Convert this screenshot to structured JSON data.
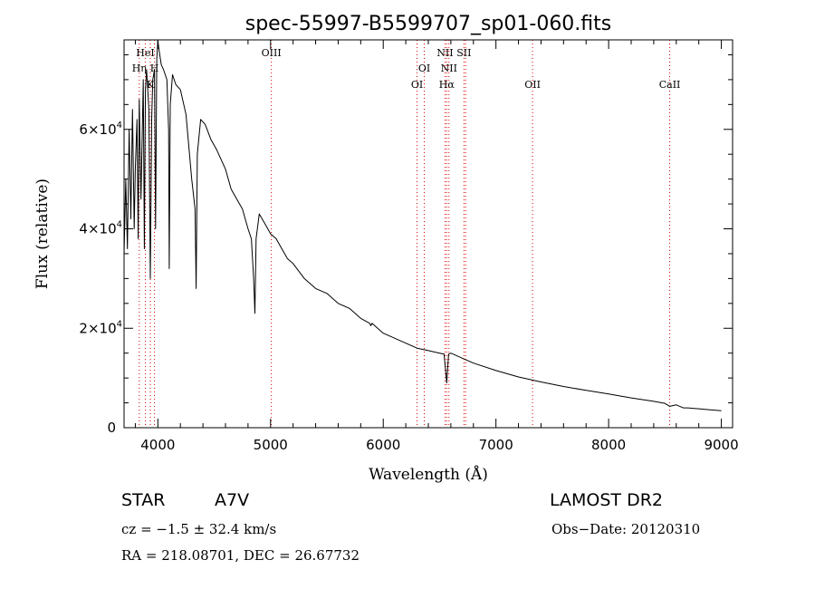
{
  "chart_data": {
    "type": "line",
    "title": "spec-55997-B5599707_sp01-060.fits",
    "xlabel": "Wavelength (Å)",
    "ylabel": "Flux (relative)",
    "xlim": [
      3700,
      9100
    ],
    "ylim": [
      0,
      78000
    ],
    "xticks": [
      4000,
      5000,
      6000,
      7000,
      8000,
      9000
    ],
    "yticks": [
      {
        "value": 0,
        "base": "0",
        "exp": ""
      },
      {
        "value": 20000,
        "base": "2×10",
        "exp": "4"
      },
      {
        "value": 40000,
        "base": "4×10",
        "exp": "4"
      },
      {
        "value": 60000,
        "base": "6×10",
        "exp": "4"
      }
    ],
    "grid": false,
    "series": [
      {
        "x": [
          3700,
          3715,
          3730,
          3745,
          3760,
          3775,
          3790,
          3800,
          3815,
          3825,
          3835,
          3850,
          3870,
          3880,
          3890,
          3900,
          3920,
          3933,
          3945,
          3955,
          3970,
          3980,
          3990,
          4000,
          4010,
          4030,
          4050,
          4080,
          4095,
          4101,
          4110,
          4130,
          4160,
          4200,
          4250,
          4300,
          4330,
          4340,
          4350,
          4380,
          4420,
          4470,
          4520,
          4560,
          4600,
          4650,
          4700,
          4750,
          4800,
          4830,
          4850,
          4861,
          4872,
          4900,
          4950,
          5000,
          5050,
          5100,
          5150,
          5200,
          5300,
          5400,
          5500,
          5600,
          5700,
          5800,
          5880,
          5890,
          5900,
          5950,
          6000,
          6100,
          6200,
          6300,
          6400,
          6500,
          6540,
          6563,
          6580,
          6600,
          6650,
          6700,
          6800,
          7000,
          7200,
          7400,
          7600,
          7800,
          8000,
          8200,
          8400,
          8498,
          8542,
          8600,
          8662,
          8700,
          8800,
          8900,
          9000
        ],
        "y": [
          35000,
          50000,
          36000,
          60000,
          42000,
          64000,
          40000,
          52000,
          62000,
          38000,
          66000,
          46000,
          70000,
          36000,
          68000,
          72000,
          64000,
          30000,
          62000,
          70000,
          72000,
          40000,
          74000,
          78000,
          76000,
          73000,
          72000,
          70000,
          60000,
          32000,
          65000,
          71000,
          69000,
          68000,
          63000,
          50000,
          44000,
          28000,
          55000,
          62000,
          61000,
          58000,
          56000,
          54000,
          52000,
          48000,
          46000,
          44000,
          40000,
          38000,
          30000,
          23000,
          38000,
          43000,
          41000,
          39000,
          38000,
          36000,
          34000,
          33000,
          30000,
          28000,
          27000,
          25000,
          24000,
          22000,
          21000,
          20500,
          21000,
          20000,
          19000,
          18000,
          17000,
          16000,
          15500,
          15000,
          14800,
          9000,
          14800,
          15000,
          14500,
          14000,
          13000,
          11500,
          10200,
          9200,
          8300,
          7500,
          6800,
          6000,
          5300,
          4900,
          4300,
          4600,
          4000,
          4000,
          3800,
          3600,
          3400
        ]
      }
    ],
    "annotations": [
      {
        "label": "HeI",
        "x": 3889,
        "row": 1
      },
      {
        "label": "Hη",
        "x": 3835,
        "row": 2
      },
      {
        "label": "H",
        "x": 3970,
        "row": 2
      },
      {
        "label": "K",
        "x": 3933,
        "row": 3
      },
      {
        "label": "OIII",
        "x": 5007,
        "row": 1
      },
      {
        "label": "OI",
        "x": 6300,
        "row": 3
      },
      {
        "label": "OI",
        "x": 6364,
        "row": 2
      },
      {
        "label": "NII",
        "x": 6548,
        "row": 1
      },
      {
        "label": "NII",
        "x": 6583,
        "row": 2
      },
      {
        "label": "Hα",
        "x": 6563,
        "row": 3
      },
      {
        "label": "SII",
        "x": 6716,
        "row": 1
      },
      {
        "label": "OII",
        "x": 7325,
        "row": 3
      },
      {
        "label": "CaII",
        "x": 8542,
        "row": 3
      }
    ],
    "marker_lines": [
      3835,
      3889,
      3933,
      3970,
      5007,
      6300,
      6364,
      6548,
      6563,
      6583,
      6716,
      6731,
      7325,
      8542
    ],
    "line_color": "#000000",
    "marker_color": "#dd0000"
  },
  "footer": {
    "object_type": "STAR",
    "subclass": "A7V",
    "survey": "LAMOST DR2",
    "redshift": "cz = −1.5 ± 32.4 km/s",
    "obs_date": "Obs−Date: 20120310",
    "coordinates": "RA = 218.08701, DEC =  26.67732"
  }
}
